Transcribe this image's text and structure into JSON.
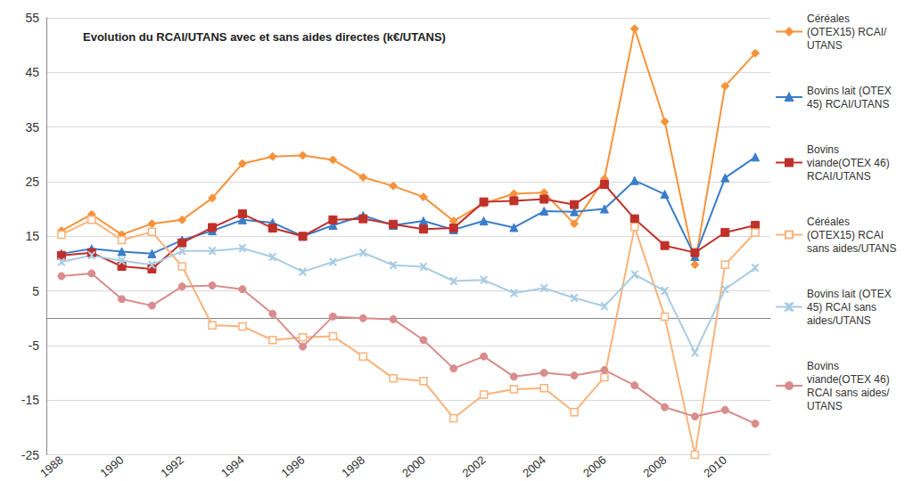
{
  "chart_data": {
    "type": "line",
    "title": "Evolution du RCAI/UTANS avec et sans aides directes (k€/UTANS)",
    "categories": [
      "1988",
      null,
      "1990",
      null,
      "1992",
      null,
      "1994",
      null,
      "1996",
      null,
      "1998",
      null,
      "2000",
      null,
      "2002",
      null,
      "2004",
      null,
      "2006",
      null,
      "2008",
      null,
      "2010",
      null
    ],
    "ylim": [
      -25,
      55
    ],
    "yticks": [
      -25,
      -15,
      -5,
      5,
      15,
      25,
      35,
      45,
      55
    ],
    "grid": true,
    "legend": "right",
    "series": [
      {
        "name": "Céréales (OTEX15) RCAI/UTANS",
        "color": "#f7923a",
        "marker": "diamond",
        "values": [
          16,
          19,
          15.3,
          17.3,
          18,
          22,
          28.3,
          29.6,
          29.8,
          29,
          25.8,
          24.2,
          22.2,
          17.8,
          21,
          22.8,
          23,
          17.3,
          25.5,
          53,
          36,
          9.8,
          42.5,
          48.5
        ]
      },
      {
        "name": "Bovins lait (OTEX 45) RCAI/UTANS",
        "color": "#3a7dc9",
        "marker": "triangle",
        "values": [
          11.8,
          12.7,
          12.2,
          11.8,
          14.3,
          16,
          18,
          17.5,
          15,
          17,
          18.8,
          17,
          17.8,
          16.2,
          17.8,
          16.6,
          19.6,
          19.5,
          20,
          25.2,
          22.7,
          11.3,
          25.7,
          29.5
        ]
      },
      {
        "name": "Bovins viande(OTEX 46) RCAI/UTANS",
        "color": "#c0302a",
        "marker": "square",
        "values": [
          11.5,
          12,
          9.5,
          9,
          13.8,
          16.6,
          19.1,
          16.5,
          15,
          18,
          18.2,
          17.2,
          16.3,
          16.5,
          21.3,
          21.5,
          21.8,
          20.8,
          24.5,
          18.2,
          13.3,
          12,
          15.7,
          17
        ]
      },
      {
        "name": "Céréales (OTEX15) RCAI sans aides/UTANS",
        "color": "#fab27a",
        "marker": "square-open",
        "values": [
          15.3,
          18,
          14.3,
          15.8,
          9.5,
          -1.3,
          -1.5,
          -4,
          -3.5,
          -3.3,
          -7,
          -11,
          -11.5,
          -18.3,
          -14,
          -13,
          -12.8,
          -17.2,
          -10.8,
          16.7,
          0.3,
          -25,
          9.8,
          15.7
        ]
      },
      {
        "name": "Bovins lait (OTEX 45) RCAI sans aides/UTANS",
        "color": "#a9cce3",
        "marker": "x",
        "values": [
          10.3,
          11.5,
          10.5,
          9.8,
          12.3,
          12.3,
          12.8,
          11.2,
          8.5,
          10.3,
          12,
          9.7,
          9.4,
          6.8,
          7,
          4.6,
          5.5,
          3.7,
          2.2,
          8,
          5,
          -6.3,
          5.3,
          9.2
        ]
      },
      {
        "name": "Bovins viande(OTEX 46) RCAI sans aides/UTANS",
        "color": "#d98c8c",
        "marker": "circle",
        "values": [
          7.7,
          8.2,
          3.5,
          2.3,
          5.8,
          6,
          5.3,
          0.8,
          -5.2,
          0.3,
          0,
          -0.2,
          -4,
          -9.2,
          -7,
          -10.7,
          -10,
          -10.5,
          -9.5,
          -12.3,
          -16.3,
          -18,
          -16.8,
          -19.3
        ]
      }
    ]
  }
}
